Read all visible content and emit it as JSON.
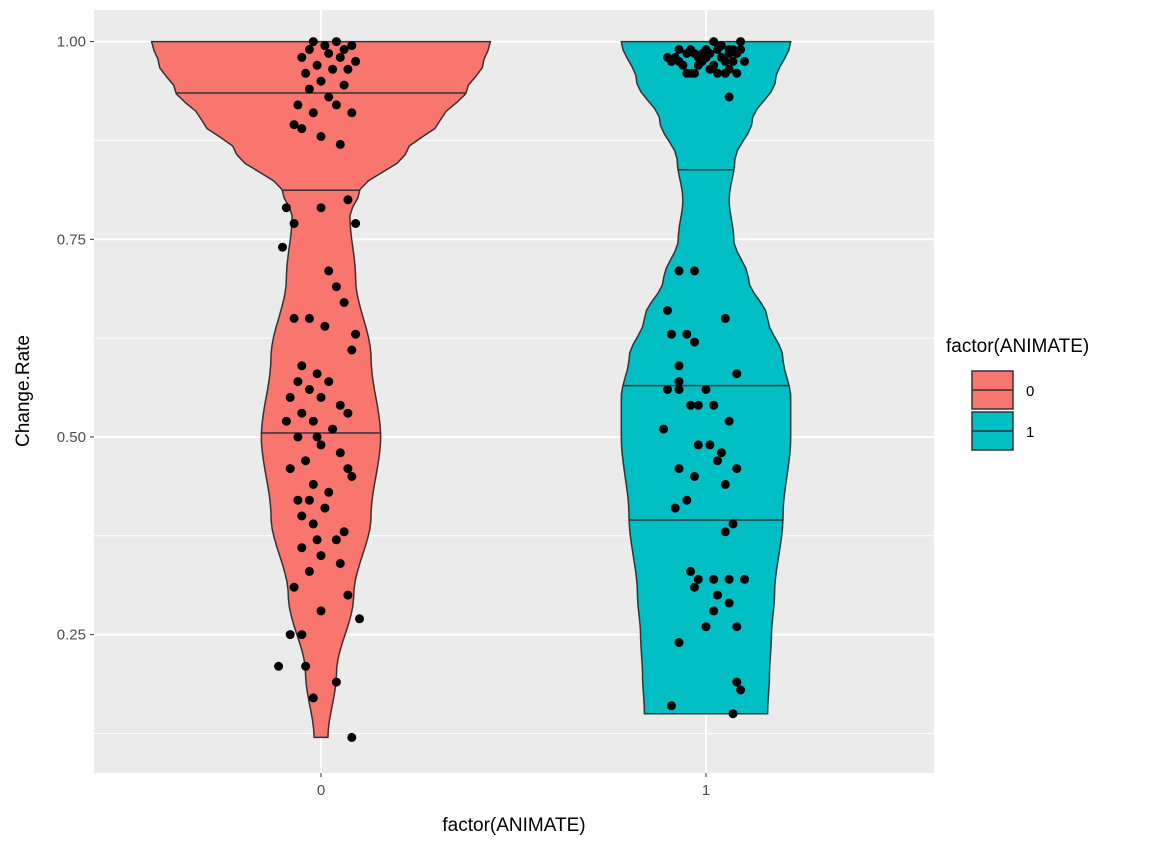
{
  "chart_data": {
    "type": "violin",
    "xlabel": "factor(ANIMATE)",
    "ylabel": "Change.Rate",
    "ylim": [
      0.075,
      1.04
    ],
    "y_ticks": [
      0.25,
      0.5,
      0.75,
      1.0
    ],
    "y_tick_labels": [
      "0.25",
      "0.50",
      "0.75",
      "1.00"
    ],
    "categories": [
      "0",
      "1"
    ],
    "grid": true,
    "legend": {
      "title": "factor(ANIMATE)",
      "placement": "right",
      "items": [
        {
          "label": "0",
          "color": "#F8766D"
        },
        {
          "label": "1",
          "color": "#00BFC4"
        }
      ]
    },
    "series": [
      {
        "name": "0",
        "color": "#F8766D",
        "range": [
          0.12,
          1.0
        ],
        "quartiles": [
          0.505,
          0.812,
          0.935
        ],
        "max_half_width": 0.44,
        "density": [
          [
            0.12,
            0.018
          ],
          [
            0.2,
            0.04
          ],
          [
            0.3,
            0.085
          ],
          [
            0.4,
            0.13
          ],
          [
            0.5,
            0.155
          ],
          [
            0.6,
            0.13
          ],
          [
            0.7,
            0.09
          ],
          [
            0.78,
            0.075
          ],
          [
            0.81,
            0.1
          ],
          [
            0.86,
            0.22
          ],
          [
            0.9,
            0.31
          ],
          [
            0.94,
            0.38
          ],
          [
            0.97,
            0.42
          ],
          [
            1.0,
            0.44
          ]
        ],
        "points": [
          [
            0.04,
            1.0
          ],
          [
            -0.02,
            1.0
          ],
          [
            0.01,
            0.995
          ],
          [
            0.06,
            0.99
          ],
          [
            -0.03,
            0.99
          ],
          [
            0.08,
            0.995
          ],
          [
            0.02,
            0.985
          ],
          [
            -0.05,
            0.98
          ],
          [
            0.05,
            0.98
          ],
          [
            0.09,
            0.975
          ],
          [
            -0.01,
            0.97
          ],
          [
            0.03,
            0.965
          ],
          [
            -0.04,
            0.96
          ],
          [
            0.07,
            0.965
          ],
          [
            0.0,
            0.95
          ],
          [
            0.06,
            0.945
          ],
          [
            -0.03,
            0.94
          ],
          [
            0.02,
            0.93
          ],
          [
            -0.06,
            0.92
          ],
          [
            0.04,
            0.92
          ],
          [
            -0.02,
            0.91
          ],
          [
            0.08,
            0.91
          ],
          [
            -0.07,
            0.895
          ],
          [
            -0.05,
            0.89
          ],
          [
            0.0,
            0.88
          ],
          [
            0.05,
            0.87
          ],
          [
            -0.09,
            0.79
          ],
          [
            0.0,
            0.79
          ],
          [
            0.07,
            0.8
          ],
          [
            0.09,
            0.77
          ],
          [
            -0.07,
            0.77
          ],
          [
            -0.1,
            0.74
          ],
          [
            0.02,
            0.71
          ],
          [
            0.04,
            0.69
          ],
          [
            0.06,
            0.67
          ],
          [
            -0.07,
            0.65
          ],
          [
            -0.03,
            0.65
          ],
          [
            0.01,
            0.64
          ],
          [
            0.09,
            0.63
          ],
          [
            0.08,
            0.61
          ],
          [
            -0.05,
            0.59
          ],
          [
            -0.01,
            0.58
          ],
          [
            -0.06,
            0.57
          ],
          [
            0.02,
            0.57
          ],
          [
            -0.03,
            0.56
          ],
          [
            -0.08,
            0.55
          ],
          [
            0.0,
            0.55
          ],
          [
            0.05,
            0.54
          ],
          [
            -0.05,
            0.53
          ],
          [
            0.07,
            0.53
          ],
          [
            -0.02,
            0.52
          ],
          [
            -0.09,
            0.52
          ],
          [
            0.03,
            0.51
          ],
          [
            -0.01,
            0.5
          ],
          [
            -0.06,
            0.5
          ],
          [
            0.0,
            0.49
          ],
          [
            0.05,
            0.48
          ],
          [
            -0.04,
            0.47
          ],
          [
            -0.08,
            0.46
          ],
          [
            0.07,
            0.46
          ],
          [
            0.08,
            0.45
          ],
          [
            -0.02,
            0.44
          ],
          [
            0.02,
            0.43
          ],
          [
            -0.06,
            0.42
          ],
          [
            -0.03,
            0.42
          ],
          [
            0.01,
            0.41
          ],
          [
            -0.05,
            0.4
          ],
          [
            -0.02,
            0.39
          ],
          [
            0.06,
            0.38
          ],
          [
            -0.01,
            0.37
          ],
          [
            0.04,
            0.37
          ],
          [
            -0.05,
            0.36
          ],
          [
            0.0,
            0.35
          ],
          [
            0.05,
            0.34
          ],
          [
            -0.03,
            0.33
          ],
          [
            0.07,
            0.3
          ],
          [
            -0.07,
            0.31
          ],
          [
            0.0,
            0.28
          ],
          [
            0.1,
            0.27
          ],
          [
            -0.08,
            0.25
          ],
          [
            -0.05,
            0.25
          ],
          [
            -0.11,
            0.21
          ],
          [
            -0.04,
            0.21
          ],
          [
            0.04,
            0.19
          ],
          [
            -0.02,
            0.17
          ],
          [
            0.08,
            0.12
          ]
        ]
      },
      {
        "name": "1",
        "color": "#00BFC4",
        "range": [
          0.15,
          1.0
        ],
        "quartiles": [
          0.395,
          0.565,
          0.838
        ],
        "max_half_width": 0.22,
        "density": [
          [
            0.15,
            0.16
          ],
          [
            0.2,
            0.165
          ],
          [
            0.25,
            0.17
          ],
          [
            0.3,
            0.178
          ],
          [
            0.4,
            0.2
          ],
          [
            0.5,
            0.22
          ],
          [
            0.55,
            0.22
          ],
          [
            0.6,
            0.2
          ],
          [
            0.65,
            0.16
          ],
          [
            0.7,
            0.11
          ],
          [
            0.75,
            0.072
          ],
          [
            0.8,
            0.06
          ],
          [
            0.85,
            0.075
          ],
          [
            0.9,
            0.12
          ],
          [
            0.95,
            0.18
          ],
          [
            1.0,
            0.22
          ]
        ],
        "points": [
          [
            0.02,
            1.0
          ],
          [
            0.09,
            1.0
          ],
          [
            0.04,
            0.995
          ],
          [
            -0.07,
            0.99
          ],
          [
            0.06,
            0.985
          ],
          [
            -0.03,
            0.985
          ],
          [
            0.0,
            0.98
          ],
          [
            0.08,
            0.985
          ],
          [
            -0.1,
            0.98
          ],
          [
            0.05,
            0.975
          ],
          [
            0.02,
            0.97
          ],
          [
            0.06,
            0.965
          ],
          [
            -0.06,
            0.97
          ],
          [
            -0.02,
            0.97
          ],
          [
            0.0,
            0.98
          ],
          [
            -0.08,
            0.98
          ],
          [
            0.07,
            0.99
          ],
          [
            0.03,
            0.96
          ],
          [
            -0.04,
            0.99
          ],
          [
            0.01,
            0.985
          ],
          [
            -0.05,
            0.985
          ],
          [
            -0.01,
            0.975
          ],
          [
            0.05,
            0.96
          ],
          [
            0.07,
            0.975
          ],
          [
            -0.09,
            0.975
          ],
          [
            -0.03,
            0.96
          ],
          [
            0.0,
            0.99
          ],
          [
            0.09,
            0.99
          ],
          [
            0.1,
            0.975
          ],
          [
            0.08,
            0.96
          ],
          [
            -0.02,
            0.98
          ],
          [
            0.04,
            0.98
          ],
          [
            -0.07,
            0.975
          ],
          [
            0.01,
            0.965
          ],
          [
            0.06,
            0.99
          ],
          [
            -0.01,
            0.985
          ],
          [
            -0.05,
            0.96
          ],
          [
            0.03,
            0.99
          ],
          [
            -0.04,
            0.96
          ],
          [
            0.06,
            0.93
          ],
          [
            -0.07,
            0.71
          ],
          [
            -0.03,
            0.71
          ],
          [
            -0.1,
            0.66
          ],
          [
            0.05,
            0.65
          ],
          [
            -0.05,
            0.63
          ],
          [
            -0.09,
            0.63
          ],
          [
            -0.03,
            0.62
          ],
          [
            -0.07,
            0.59
          ],
          [
            0.08,
            0.58
          ],
          [
            -0.07,
            0.57
          ],
          [
            -0.1,
            0.56
          ],
          [
            -0.07,
            0.56
          ],
          [
            0.0,
            0.56
          ],
          [
            -0.04,
            0.54
          ],
          [
            -0.02,
            0.54
          ],
          [
            0.02,
            0.54
          ],
          [
            0.06,
            0.52
          ],
          [
            -0.11,
            0.51
          ],
          [
            0.01,
            0.49
          ],
          [
            -0.02,
            0.49
          ],
          [
            0.04,
            0.48
          ],
          [
            0.03,
            0.47
          ],
          [
            -0.07,
            0.46
          ],
          [
            0.08,
            0.46
          ],
          [
            -0.03,
            0.45
          ],
          [
            0.05,
            0.44
          ],
          [
            -0.05,
            0.42
          ],
          [
            -0.08,
            0.41
          ],
          [
            0.07,
            0.39
          ],
          [
            0.05,
            0.38
          ],
          [
            -0.04,
            0.33
          ],
          [
            -0.02,
            0.32
          ],
          [
            0.02,
            0.32
          ],
          [
            0.06,
            0.32
          ],
          [
            0.1,
            0.32
          ],
          [
            0.03,
            0.3
          ],
          [
            -0.03,
            0.31
          ],
          [
            0.02,
            0.28
          ],
          [
            0.06,
            0.29
          ],
          [
            0.08,
            0.26
          ],
          [
            -0.07,
            0.24
          ],
          [
            0.0,
            0.26
          ],
          [
            0.08,
            0.19
          ],
          [
            0.09,
            0.18
          ],
          [
            -0.09,
            0.16
          ],
          [
            0.07,
            0.15
          ]
        ]
      }
    ]
  }
}
